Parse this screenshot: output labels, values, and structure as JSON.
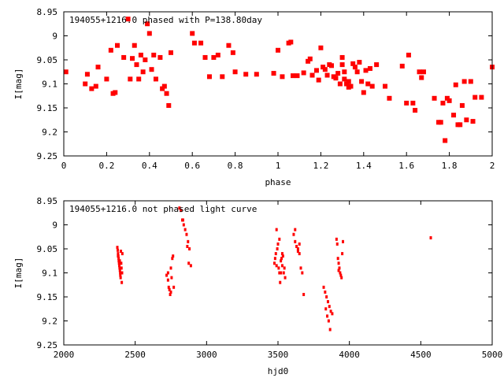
{
  "chart_data": [
    {
      "type": "scatter",
      "title": "194055+1216.0 phased with P=138.80day",
      "xlabel": "phase",
      "ylabel": "I[mag]",
      "xlim": [
        0,
        2
      ],
      "ylim": [
        8.95,
        9.25
      ],
      "y_inverted": true,
      "x_ticks": [
        0,
        0.2,
        0.4,
        0.6,
        0.8,
        1,
        1.2,
        1.4,
        1.6,
        1.8,
        2
      ],
      "x_tick_labels": [
        "0",
        "0.2",
        "0.4",
        "0.6",
        "0.8",
        "1",
        "1.2",
        "1.4",
        "1.6",
        "1.8",
        "2"
      ],
      "y_ticks": [
        8.95,
        9,
        9.05,
        9.1,
        9.15,
        9.2,
        9.25
      ],
      "y_tick_labels": [
        "8.95",
        "9",
        "9.05",
        "9.1",
        "9.15",
        "9.2",
        "9.25"
      ],
      "grid": false,
      "marker_color": "#ff0000",
      "marker": "filled-square",
      "x": [
        0.01,
        0.1,
        0.11,
        0.13,
        0.15,
        0.16,
        0.2,
        0.22,
        0.23,
        0.24,
        0.25,
        0.28,
        0.3,
        0.31,
        0.32,
        0.33,
        0.34,
        0.35,
        0.36,
        0.37,
        0.38,
        0.39,
        0.4,
        0.41,
        0.42,
        0.43,
        0.45,
        0.46,
        0.47,
        0.48,
        0.49,
        0.5,
        0.6,
        0.61,
        0.64,
        0.66,
        0.68,
        0.7,
        0.72,
        0.74,
        0.77,
        0.79,
        0.8,
        0.85,
        0.9,
        0.98,
        1.0,
        1.02,
        1.05,
        1.06,
        1.07,
        1.09,
        1.12,
        1.14,
        1.15,
        1.16,
        1.18,
        1.19,
        1.2,
        1.21,
        1.22,
        1.23,
        1.24,
        1.25,
        1.26,
        1.27,
        1.28,
        1.29,
        1.3,
        1.3,
        1.31,
        1.31,
        1.32,
        1.33,
        1.33,
        1.34,
        1.35,
        1.36,
        1.37,
        1.38,
        1.39,
        1.4,
        1.41,
        1.42,
        1.43,
        1.44,
        1.46,
        1.5,
        1.52,
        1.58,
        1.6,
        1.61,
        1.63,
        1.64,
        1.66,
        1.67,
        1.68,
        1.73,
        1.75,
        1.76,
        1.77,
        1.78,
        1.79,
        1.8,
        1.82,
        1.83,
        1.84,
        1.85,
        1.86,
        1.87,
        1.88,
        1.9,
        1.91,
        1.92,
        1.95,
        2.0
      ],
      "y": [
        9.075,
        9.1,
        9.08,
        9.11,
        9.105,
        9.065,
        9.09,
        9.03,
        9.12,
        9.118,
        9.02,
        9.045,
        8.965,
        9.09,
        9.047,
        9.02,
        9.06,
        9.09,
        9.04,
        9.075,
        9.05,
        8.975,
        8.995,
        9.07,
        9.04,
        9.09,
        9.045,
        9.11,
        9.105,
        9.12,
        9.145,
        9.035,
        8.995,
        9.015,
        9.015,
        9.045,
        9.085,
        9.045,
        9.04,
        9.085,
        9.02,
        9.035,
        9.075,
        9.08,
        9.08,
        9.078,
        9.03,
        9.085,
        9.015,
        9.013,
        9.083,
        9.083,
        9.077,
        9.053,
        9.048,
        9.082,
        9.072,
        9.092,
        9.025,
        9.065,
        9.07,
        9.082,
        9.06,
        9.062,
        9.085,
        9.088,
        9.078,
        9.1,
        9.045,
        9.06,
        9.075,
        9.09,
        9.1,
        9.107,
        9.095,
        9.105,
        9.058,
        9.065,
        9.075,
        9.055,
        9.095,
        9.118,
        9.072,
        9.1,
        9.068,
        9.105,
        9.06,
        9.105,
        9.13,
        9.063,
        9.14,
        9.04,
        9.14,
        9.155,
        9.075,
        9.087,
        9.075,
        9.13,
        9.18,
        9.18,
        9.14,
        9.218,
        9.13,
        9.135,
        9.165,
        9.102,
        9.185,
        9.185,
        9.145,
        9.095,
        9.175,
        9.095,
        9.178,
        9.128,
        9.128,
        9.065
      ]
    },
    {
      "type": "scatter",
      "title": "194055+1216.0 not phased light curve",
      "xlabel": "hjd0",
      "ylabel": "I[mag]",
      "xlim": [
        2000,
        5000
      ],
      "ylim": [
        8.95,
        9.25
      ],
      "y_inverted": true,
      "x_ticks": [
        2000,
        2500,
        3000,
        3500,
        4000,
        4500,
        5000
      ],
      "x_tick_labels": [
        "2000",
        "2500",
        "3000",
        "3500",
        "4000",
        "4500",
        "5000"
      ],
      "y_ticks": [
        8.95,
        9,
        9.05,
        9.1,
        9.15,
        9.2,
        9.25
      ],
      "y_tick_labels": [
        "8.95",
        "9",
        "9.05",
        "9.1",
        "9.15",
        "9.2",
        "9.25"
      ],
      "grid": false,
      "marker_color": "#ff0000",
      "marker": "small-dot",
      "x": [
        2375,
        2378,
        2380,
        2382,
        2384,
        2385,
        2387,
        2389,
        2391,
        2393,
        2395,
        2396,
        2398,
        2400,
        2402,
        2404,
        2406,
        2408,
        2410,
        2380,
        2392,
        2400,
        2720,
        2730,
        2735,
        2740,
        2745,
        2750,
        2755,
        2760,
        2765,
        2770,
        2730,
        2750,
        2810,
        2820,
        2830,
        2840,
        2850,
        2860,
        2870,
        2880,
        2890,
        2835,
        2865,
        2875,
        3475,
        3480,
        3485,
        3490,
        3495,
        3500,
        3505,
        3510,
        3515,
        3520,
        3525,
        3530,
        3535,
        3540,
        3545,
        3550,
        3490,
        3510,
        3530,
        3520,
        3610,
        3620,
        3630,
        3640,
        3650,
        3660,
        3670,
        3680,
        3620,
        3650,
        3640,
        3820,
        3830,
        3840,
        3850,
        3860,
        3870,
        3880,
        3835,
        3845,
        3855,
        3865,
        3910,
        3915,
        3920,
        3925,
        3930,
        3935,
        3940,
        3945,
        3950,
        3955,
        3925,
        4570
      ],
      "y": [
        9.047,
        9.053,
        9.06,
        9.065,
        9.07,
        9.075,
        9.08,
        9.085,
        9.09,
        9.095,
        9.1,
        9.105,
        9.11,
        9.055,
        9.08,
        9.09,
        9.12,
        9.1,
        9.06,
        9.065,
        9.075,
        9.1,
        9.105,
        9.1,
        9.13,
        9.135,
        9.145,
        9.09,
        9.11,
        9.07,
        9.065,
        9.13,
        9.115,
        9.14,
        8.965,
        8.97,
        8.99,
        9.0,
        9.01,
        9.02,
        9.035,
        9.05,
        9.085,
        8.99,
        9.045,
        9.08,
        9.08,
        9.07,
        9.06,
        9.085,
        9.05,
        9.04,
        9.09,
        9.1,
        9.12,
        9.075,
        9.07,
        9.085,
        9.065,
        9.1,
        9.09,
        9.11,
        9.01,
        9.03,
        9.06,
        9.1,
        9.02,
        9.035,
        9.045,
        9.05,
        9.06,
        9.09,
        9.1,
        9.145,
        9.01,
        9.04,
        9.055,
        9.13,
        9.14,
        9.15,
        9.16,
        9.17,
        9.18,
        9.185,
        9.175,
        9.19,
        9.2,
        9.218,
        9.03,
        9.04,
        9.07,
        9.08,
        9.09,
        9.1,
        9.105,
        9.11,
        9.06,
        9.035,
        9.095,
        9.027
      ]
    }
  ]
}
